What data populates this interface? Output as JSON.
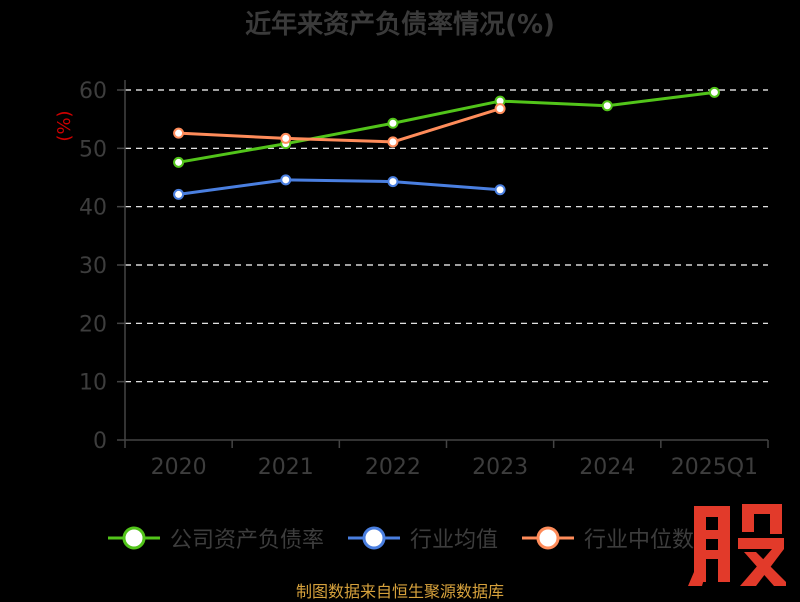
{
  "title": "近年来资产负债率情况(%)",
  "source": "制图数据来自恒生聚源数据库",
  "watermark_text": "股",
  "colors": {
    "background": "#000000",
    "company": "#52c41a",
    "industry_avg": "#4a7fe0",
    "industry_median": "#ff8c5a",
    "axis": "#444444",
    "grid": "#ffffff",
    "ylabel": "#cc0000",
    "watermark": "#e23a2a"
  },
  "chart_data": {
    "type": "line",
    "title": "近年来资产负债率情况(%)",
    "ylabel": "(%)",
    "xlabel": "",
    "categories": [
      "2020",
      "2021",
      "2022",
      "2023",
      "2024",
      "2025Q1"
    ],
    "ylim": [
      0,
      60
    ],
    "yticks": [
      0,
      10,
      20,
      30,
      40,
      50,
      60
    ],
    "grid": true,
    "legend_position": "bottom",
    "series": [
      {
        "name": "公司资产负债率",
        "color": "#52c41a",
        "values": [
          47.6,
          50.8,
          54.3,
          58.1,
          57.3,
          59.6
        ]
      },
      {
        "name": "行业均值",
        "color": "#4a7fe0",
        "values": [
          42.1,
          44.6,
          44.3,
          42.9,
          null,
          null
        ]
      },
      {
        "name": "行业中位数",
        "color": "#ff8c5a",
        "values": [
          52.6,
          51.7,
          51.1,
          56.8,
          null,
          null
        ]
      }
    ]
  }
}
